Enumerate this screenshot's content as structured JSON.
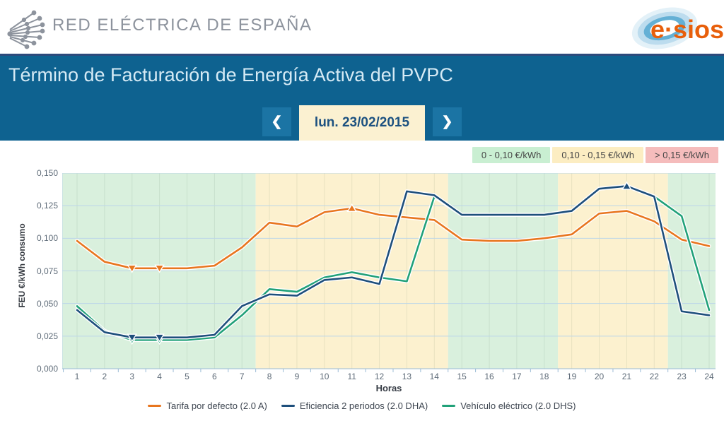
{
  "header": {
    "brand": "RED ELÉCTRICA DE ESPAÑA",
    "esios_logo_text": "e·sios"
  },
  "banner": {
    "title": "Término de Facturación de Energía Activa del PVPC",
    "nav": {
      "prev": "❮",
      "date": "lun. 23/02/2015",
      "next": "❯"
    }
  },
  "price_bands_legend": [
    {
      "label": "0 - 0,10 €/kWh",
      "color": "#c9efd2"
    },
    {
      "label": "0,10 - 0,15 €/kWh",
      "color": "#fcedc2"
    },
    {
      "label": "> 0,15 €/kWh",
      "color": "#f5bcbc"
    }
  ],
  "chart_data": {
    "type": "line",
    "xlabel": "Horas",
    "ylabel": "FEU €/kWh consumo",
    "x": [
      1,
      2,
      3,
      4,
      5,
      6,
      7,
      8,
      9,
      10,
      11,
      12,
      13,
      14,
      15,
      16,
      17,
      18,
      19,
      20,
      21,
      22,
      23,
      24
    ],
    "ylim": [
      0,
      0.15
    ],
    "ytick_labels": [
      "0,000",
      "0,025",
      "0,050",
      "0,075",
      "0,100",
      "0,125",
      "0,150"
    ],
    "grid": true,
    "legend_position": "bottom",
    "series": [
      {
        "name": "Tarifa por defecto (2.0 A)",
        "color": "#e8761f",
        "values": [
          0.098,
          0.082,
          0.077,
          0.077,
          0.077,
          0.079,
          0.093,
          0.112,
          0.109,
          0.12,
          0.123,
          0.118,
          0.116,
          0.114,
          0.099,
          0.098,
          0.098,
          0.1,
          0.103,
          0.119,
          0.121,
          0.113,
          0.099,
          0.094
        ],
        "markers": {
          "min": [
            3,
            4
          ],
          "max": [
            11
          ]
        }
      },
      {
        "name": "Eficiencia 2 periodos (2.0 DHA)",
        "color": "#1e4f7c",
        "values": [
          0.045,
          0.028,
          0.024,
          0.024,
          0.024,
          0.026,
          0.048,
          0.057,
          0.056,
          0.068,
          0.07,
          0.065,
          0.136,
          0.133,
          0.118,
          0.118,
          0.118,
          0.118,
          0.121,
          0.138,
          0.14,
          0.132,
          0.044,
          0.041
        ],
        "markers": {
          "min": [
            3,
            4
          ],
          "max": [
            21
          ]
        }
      },
      {
        "name": "Vehículo eléctrico (2.0 DHS)",
        "color": "#21a179",
        "values": [
          0.048,
          0.029,
          0.022,
          0.022,
          0.022,
          0.024,
          0.041,
          0.061,
          0.059,
          0.07,
          0.074,
          0.07,
          0.067,
          0.132,
          0.118,
          0.118,
          0.118,
          0.118,
          0.121,
          0.138,
          0.14,
          0.132,
          0.117,
          0.045
        ],
        "markers": {
          "min": [
            3,
            4
          ],
          "max": [
            21
          ]
        }
      }
    ],
    "background_bands": [
      {
        "from": 0.4,
        "to": 7.5,
        "color": "#d9f0dd"
      },
      {
        "from": 7.5,
        "to": 14.5,
        "color": "#fcf1cf"
      },
      {
        "from": 14.5,
        "to": 18.5,
        "color": "#d9f0dd"
      },
      {
        "from": 18.5,
        "to": 22.5,
        "color": "#fcf1cf"
      },
      {
        "from": 22.5,
        "to": 24.3,
        "color": "#d9f0dd"
      }
    ]
  }
}
